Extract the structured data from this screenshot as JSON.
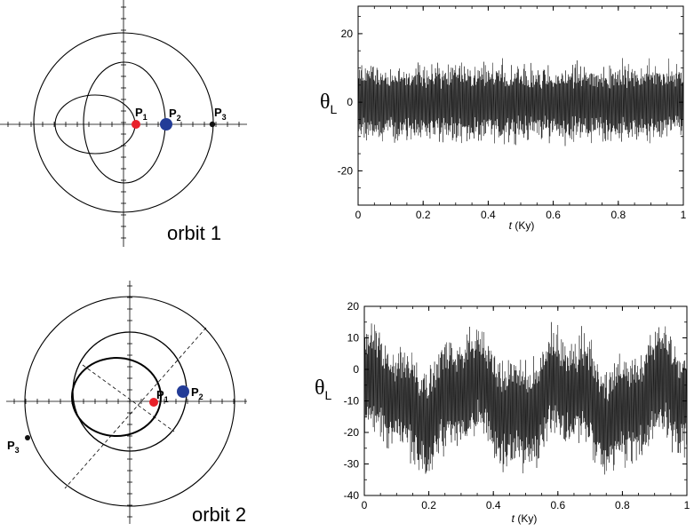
{
  "colors": {
    "p1": "#e8222b",
    "p2": "#233c97",
    "p3": "#111111",
    "signal": "#000000",
    "orbit": "#000000"
  },
  "orbit_panels": [
    {
      "caption": "orbit 1",
      "labels": {
        "p1": "P",
        "p1_sub": "1",
        "p2": "P",
        "p2_sub": "2",
        "p3": "P",
        "p3_sub": "3"
      }
    },
    {
      "caption": "orbit 2",
      "labels": {
        "p1": "P",
        "p1_sub": "1",
        "p2": "P",
        "p2_sub": "2",
        "p3": "P",
        "p3_sub": "3"
      }
    }
  ],
  "chart_data": [
    {
      "type": "line",
      "title": "",
      "ylabel_main": "θ",
      "ylabel_sub": "L",
      "xlabel_italic": "t",
      "xlabel_rest": " (Ky)",
      "xlim": [
        0,
        1
      ],
      "ylim": [
        -30,
        28
      ],
      "x_ticks": [
        "0",
        "0.2",
        "0.4",
        "0.6",
        "0.8",
        "1"
      ],
      "x_tick_values": [
        0,
        0.2,
        0.4,
        0.6,
        0.8,
        1
      ],
      "y_ticks": [
        "-20",
        "0",
        "20"
      ],
      "y_tick_values": [
        -20,
        0,
        20
      ],
      "series": [
        {
          "description_values": "dense oscillation centered near 0 with amplitude about 13",
          "center": 0,
          "amplitude": 13,
          "samples": 900
        }
      ]
    },
    {
      "type": "line",
      "title": "",
      "ylabel_main": "θ",
      "ylabel_sub": "L",
      "xlabel_italic": "t",
      "xlabel_rest": " (Ky)",
      "xlim": [
        0,
        1
      ],
      "ylim": [
        -40,
        20
      ],
      "x_ticks": [
        "0",
        "0.2",
        "0.4",
        "0.6",
        "0.8",
        "1"
      ],
      "x_tick_values": [
        0,
        0.2,
        0.4,
        0.6,
        0.8,
        1
      ],
      "y_ticks": [
        "20",
        "10",
        "0",
        "-10",
        "-20",
        "-30",
        "-40"
      ],
      "y_tick_values": [
        20,
        10,
        0,
        -10,
        -20,
        -30,
        -40
      ],
      "series": [
        {
          "description_values": "dense oscillation centered near -10 with amplitude about 20",
          "center": -10,
          "amplitude": 20,
          "samples": 900
        }
      ]
    }
  ]
}
